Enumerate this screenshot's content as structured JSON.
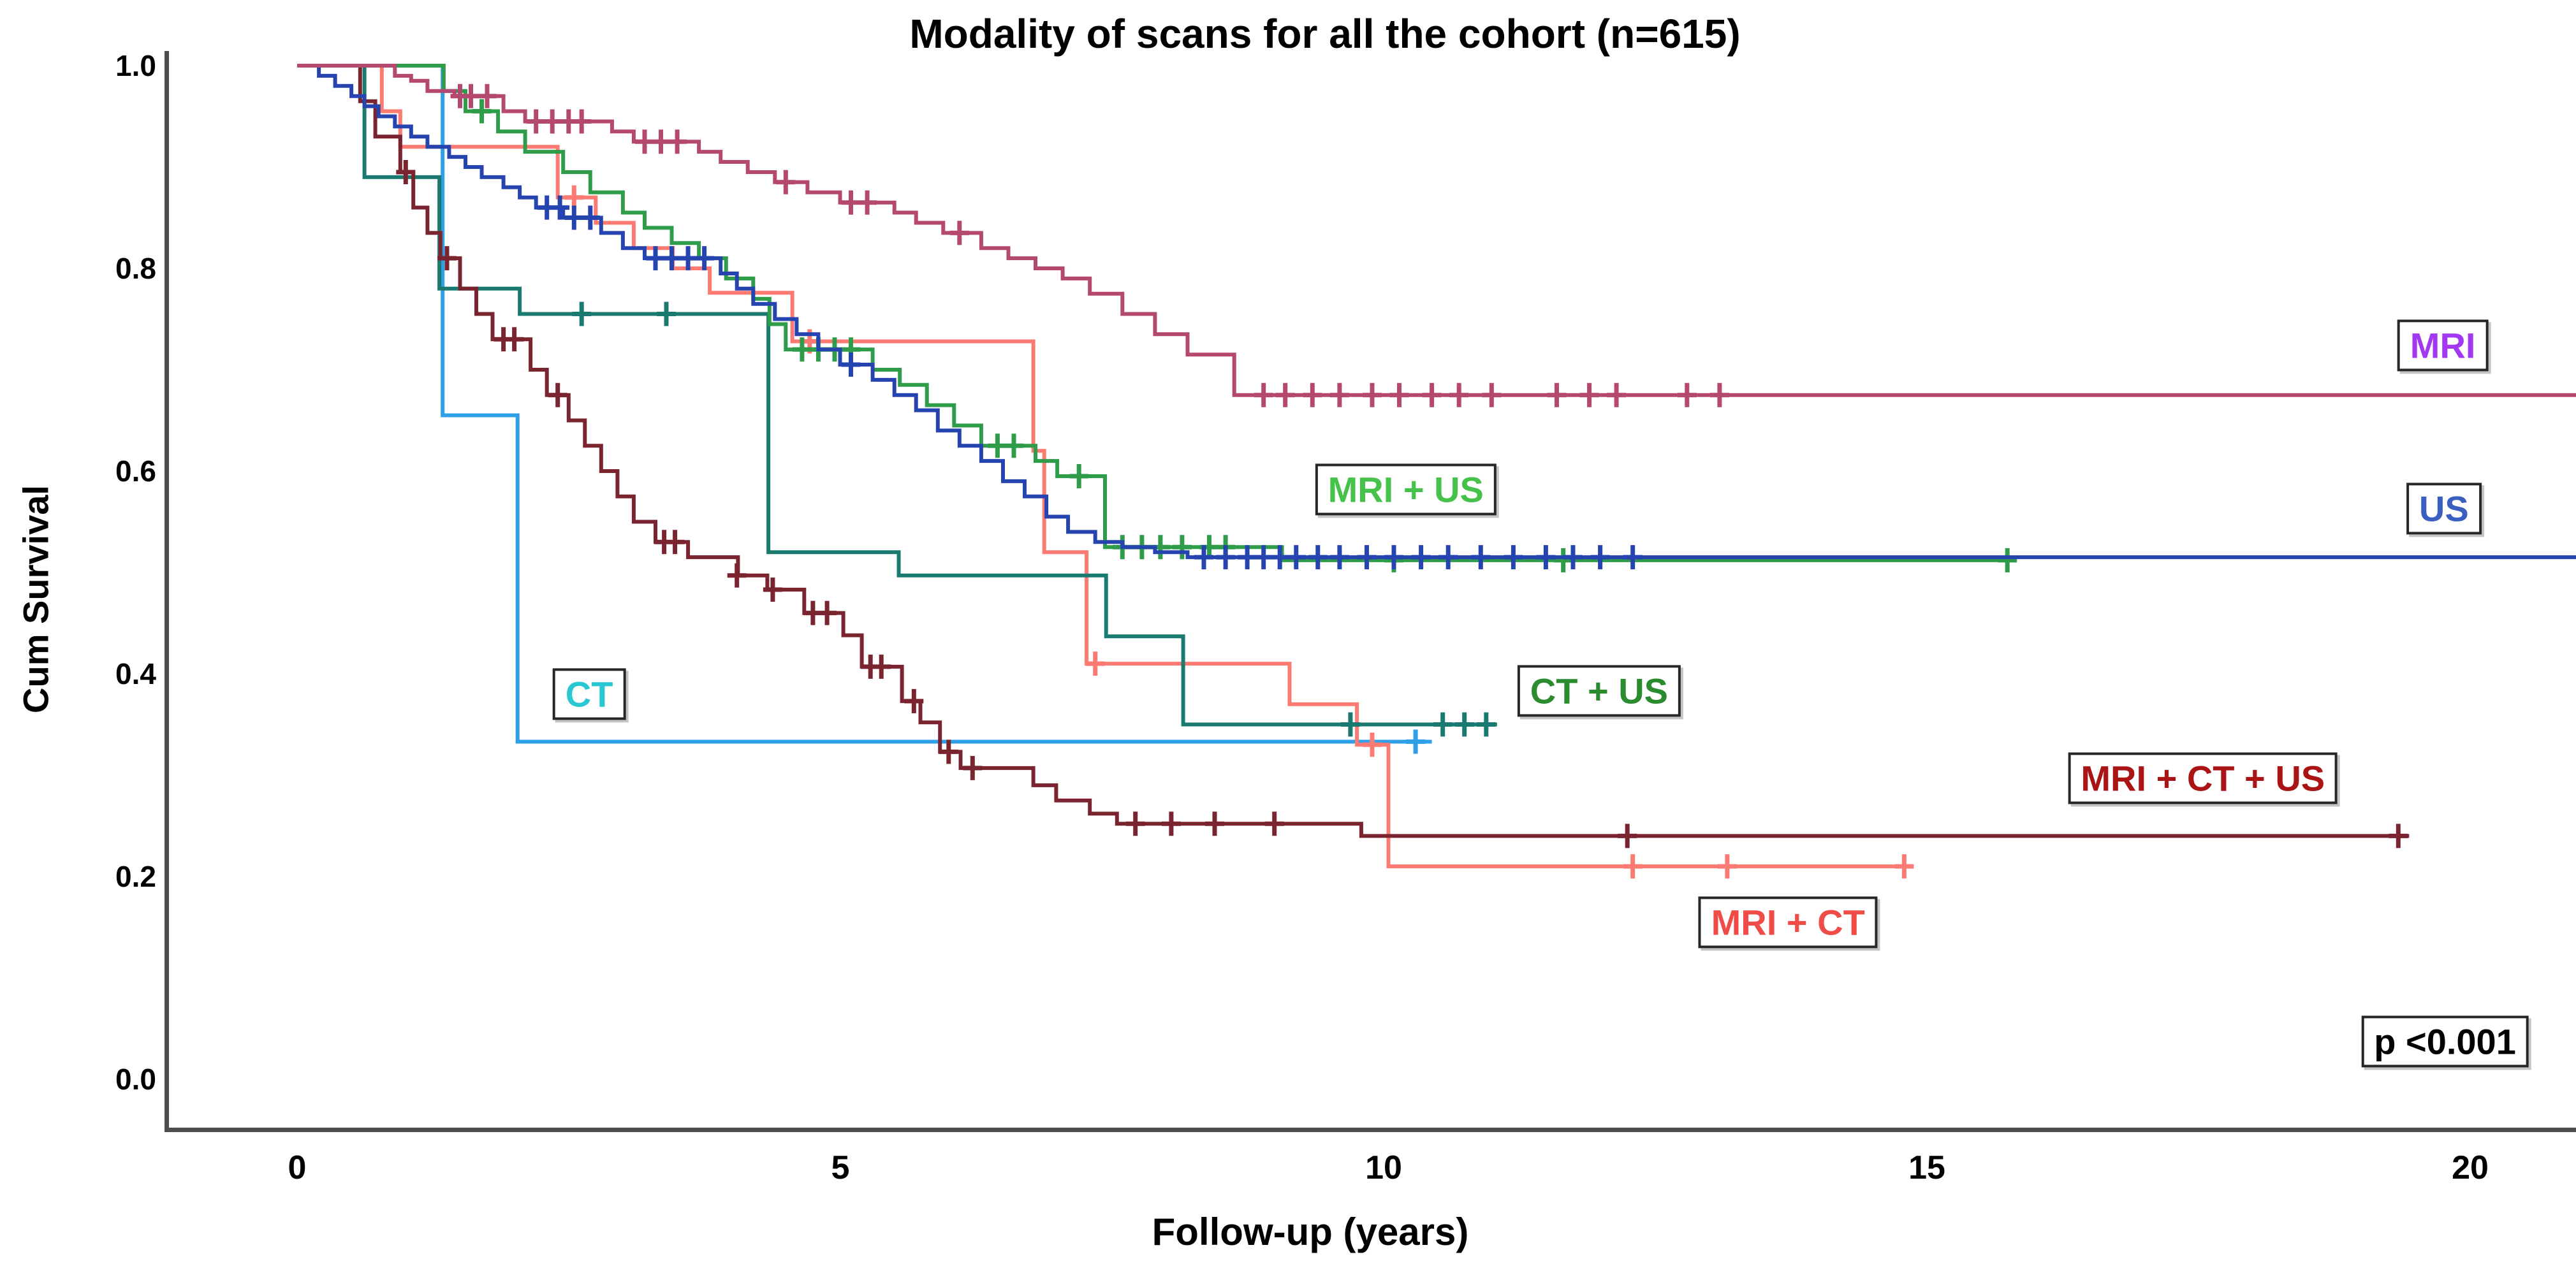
{
  "chart_data": {
    "type": "line",
    "subtype": "kaplan-meier-step",
    "title": "Modality of scans for all the cohort (n=615)",
    "xlabel": "Follow-up (years)",
    "ylabel": "Cum Survival",
    "xticks": [
      "0",
      "5",
      "10",
      "15",
      "20"
    ],
    "xtick_values": [
      0,
      5,
      10,
      15,
      20
    ],
    "yticks": [
      "1.0",
      "0.8",
      "0.6",
      "0.4",
      "0.2",
      "0.0"
    ],
    "ytick_values": [
      1.0,
      0.8,
      0.6,
      0.4,
      0.2,
      0.0
    ],
    "xlim": [
      0,
      21
    ],
    "ylim": [
      0,
      1.0
    ],
    "grid": false,
    "legend_position": "inline-boxed-labels",
    "axis_color": "#4d4d4d",
    "censor_marker": "plus",
    "series": [
      {
        "name": "CT",
        "color": "#2F9FE8",
        "points": [
          [
            0,
            1.0
          ],
          [
            1.34,
            0.655
          ],
          [
            2.03,
            0.333
          ],
          [
            10.45,
            0.333
          ]
        ],
        "censors": [
          [
            10.3,
            0.333
          ]
        ]
      },
      {
        "name": "MRI + CT",
        "color": "#FB7A72",
        "points": [
          [
            0,
            1.0
          ],
          [
            0.78,
            0.955
          ],
          [
            0.95,
            0.92
          ],
          [
            2.4,
            0.87
          ],
          [
            2.75,
            0.845
          ],
          [
            3.1,
            0.82
          ],
          [
            3.46,
            0.8
          ],
          [
            3.8,
            0.776
          ],
          [
            4.56,
            0.728
          ],
          [
            6.78,
            0.62
          ],
          [
            6.88,
            0.52
          ],
          [
            7.27,
            0.41
          ],
          [
            9.14,
            0.37
          ],
          [
            9.76,
            0.33
          ],
          [
            10.05,
            0.21
          ],
          [
            14.85,
            0.21
          ]
        ],
        "censors": [
          [
            2.55,
            0.87
          ],
          [
            4.72,
            0.728
          ],
          [
            7.35,
            0.41
          ],
          [
            9.9,
            0.33
          ],
          [
            12.3,
            0.21
          ],
          [
            13.17,
            0.21
          ],
          [
            14.8,
            0.21
          ]
        ]
      },
      {
        "name": "CT + US",
        "color": "#1B7A70",
        "points": [
          [
            0,
            1.0
          ],
          [
            0.62,
            0.89
          ],
          [
            1.31,
            0.78
          ],
          [
            2.05,
            0.755
          ],
          [
            4.34,
            0.52
          ],
          [
            5.54,
            0.497
          ],
          [
            7.45,
            0.437
          ],
          [
            8.16,
            0.35
          ],
          [
            11.05,
            0.35
          ]
        ],
        "censors": [
          [
            2.62,
            0.755
          ],
          [
            3.4,
            0.755
          ],
          [
            9.7,
            0.35
          ],
          [
            10.55,
            0.35
          ],
          [
            10.75,
            0.35
          ],
          [
            10.95,
            0.35
          ]
        ]
      },
      {
        "name": "MRI + CT + US",
        "color": "#7A2430",
        "points": [
          [
            0,
            1.0
          ],
          [
            0.58,
            0.965
          ],
          [
            0.72,
            0.93
          ],
          [
            0.95,
            0.895
          ],
          [
            1.07,
            0.86
          ],
          [
            1.2,
            0.835
          ],
          [
            1.32,
            0.81
          ],
          [
            1.5,
            0.78
          ],
          [
            1.65,
            0.755
          ],
          [
            1.8,
            0.73
          ],
          [
            2.15,
            0.7
          ],
          [
            2.3,
            0.675
          ],
          [
            2.5,
            0.65
          ],
          [
            2.65,
            0.625
          ],
          [
            2.8,
            0.6
          ],
          [
            2.95,
            0.575
          ],
          [
            3.1,
            0.55
          ],
          [
            3.3,
            0.53
          ],
          [
            3.6,
            0.515
          ],
          [
            4.06,
            0.497
          ],
          [
            4.33,
            0.483
          ],
          [
            4.67,
            0.46
          ],
          [
            5.03,
            0.438
          ],
          [
            5.2,
            0.407
          ],
          [
            5.57,
            0.373
          ],
          [
            5.74,
            0.352
          ],
          [
            5.92,
            0.323
          ],
          [
            6.11,
            0.307
          ],
          [
            6.78,
            0.29
          ],
          [
            6.99,
            0.275
          ],
          [
            7.3,
            0.262
          ],
          [
            7.55,
            0.252
          ],
          [
            9.8,
            0.24
          ],
          [
            19.45,
            0.24
          ]
        ],
        "censors": [
          [
            1.0,
            0.895
          ],
          [
            1.38,
            0.81
          ],
          [
            1.9,
            0.73
          ],
          [
            2.0,
            0.73
          ],
          [
            2.4,
            0.675
          ],
          [
            3.38,
            0.53
          ],
          [
            3.48,
            0.53
          ],
          [
            4.05,
            0.497
          ],
          [
            4.38,
            0.483
          ],
          [
            4.75,
            0.46
          ],
          [
            4.88,
            0.46
          ],
          [
            5.28,
            0.407
          ],
          [
            5.38,
            0.407
          ],
          [
            5.68,
            0.373
          ],
          [
            6.0,
            0.323
          ],
          [
            6.22,
            0.307
          ],
          [
            7.72,
            0.252
          ],
          [
            8.05,
            0.252
          ],
          [
            8.45,
            0.252
          ],
          [
            9.0,
            0.252
          ],
          [
            12.25,
            0.24
          ],
          [
            19.35,
            0.24
          ]
        ]
      },
      {
        "name": "MRI + US",
        "color": "#2E9C49",
        "points": [
          [
            0,
            1.0
          ],
          [
            1.35,
            0.975
          ],
          [
            1.55,
            0.955
          ],
          [
            1.85,
            0.935
          ],
          [
            2.1,
            0.915
          ],
          [
            2.45,
            0.895
          ],
          [
            2.7,
            0.875
          ],
          [
            3.0,
            0.855
          ],
          [
            3.2,
            0.84
          ],
          [
            3.45,
            0.825
          ],
          [
            3.7,
            0.81
          ],
          [
            3.95,
            0.79
          ],
          [
            4.2,
            0.77
          ],
          [
            4.35,
            0.745
          ],
          [
            4.5,
            0.72
          ],
          [
            5.3,
            0.7
          ],
          [
            5.55,
            0.685
          ],
          [
            5.8,
            0.665
          ],
          [
            6.05,
            0.645
          ],
          [
            6.3,
            0.625
          ],
          [
            6.8,
            0.61
          ],
          [
            7.0,
            0.595
          ],
          [
            7.44,
            0.525
          ],
          [
            9.07,
            0.512
          ],
          [
            15.8,
            0.512
          ]
        ],
        "censors": [
          [
            1.7,
            0.955
          ],
          [
            4.65,
            0.72
          ],
          [
            4.8,
            0.72
          ],
          [
            4.95,
            0.72
          ],
          [
            5.1,
            0.72
          ],
          [
            6.45,
            0.625
          ],
          [
            6.6,
            0.625
          ],
          [
            7.2,
            0.595
          ],
          [
            7.6,
            0.525
          ],
          [
            7.78,
            0.525
          ],
          [
            7.95,
            0.525
          ],
          [
            8.15,
            0.525
          ],
          [
            8.4,
            0.525
          ],
          [
            8.55,
            0.525
          ],
          [
            10.1,
            0.512
          ],
          [
            11.66,
            0.512
          ],
          [
            15.75,
            0.512
          ]
        ]
      },
      {
        "name": "US",
        "color": "#2644B0",
        "points": [
          [
            0,
            1.0
          ],
          [
            0.2,
            0.99
          ],
          [
            0.35,
            0.98
          ],
          [
            0.5,
            0.97
          ],
          [
            0.62,
            0.96
          ],
          [
            0.75,
            0.95
          ],
          [
            0.9,
            0.94
          ],
          [
            1.05,
            0.93
          ],
          [
            1.2,
            0.92
          ],
          [
            1.4,
            0.91
          ],
          [
            1.55,
            0.9
          ],
          [
            1.7,
            0.89
          ],
          [
            1.9,
            0.88
          ],
          [
            2.05,
            0.87
          ],
          [
            2.2,
            0.86
          ],
          [
            2.45,
            0.85
          ],
          [
            2.8,
            0.835
          ],
          [
            3.0,
            0.82
          ],
          [
            3.2,
            0.81
          ],
          [
            3.9,
            0.795
          ],
          [
            4.05,
            0.78
          ],
          [
            4.2,
            0.765
          ],
          [
            4.4,
            0.75
          ],
          [
            4.6,
            0.735
          ],
          [
            4.8,
            0.72
          ],
          [
            5.0,
            0.705
          ],
          [
            5.3,
            0.69
          ],
          [
            5.5,
            0.675
          ],
          [
            5.7,
            0.66
          ],
          [
            5.9,
            0.64
          ],
          [
            6.1,
            0.625
          ],
          [
            6.3,
            0.61
          ],
          [
            6.5,
            0.59
          ],
          [
            6.7,
            0.575
          ],
          [
            6.9,
            0.555
          ],
          [
            7.1,
            0.54
          ],
          [
            7.35,
            0.53
          ],
          [
            7.6,
            0.525
          ],
          [
            7.9,
            0.52
          ],
          [
            8.2,
            0.515
          ],
          [
            21.0,
            0.515
          ]
        ],
        "censors": [
          [
            2.3,
            0.86
          ],
          [
            2.42,
            0.86
          ],
          [
            2.55,
            0.85
          ],
          [
            2.7,
            0.85
          ],
          [
            3.3,
            0.81
          ],
          [
            3.45,
            0.81
          ],
          [
            3.6,
            0.81
          ],
          [
            3.75,
            0.81
          ],
          [
            5.1,
            0.705
          ],
          [
            8.35,
            0.515
          ],
          [
            8.55,
            0.515
          ],
          [
            8.75,
            0.515
          ],
          [
            8.9,
            0.515
          ],
          [
            9.05,
            0.515
          ],
          [
            9.2,
            0.515
          ],
          [
            9.4,
            0.515
          ],
          [
            9.6,
            0.515
          ],
          [
            9.85,
            0.515
          ],
          [
            10.1,
            0.515
          ],
          [
            10.35,
            0.515
          ],
          [
            10.6,
            0.515
          ],
          [
            10.9,
            0.515
          ],
          [
            11.2,
            0.515
          ],
          [
            11.5,
            0.515
          ],
          [
            11.75,
            0.515
          ],
          [
            12.0,
            0.515
          ],
          [
            12.3,
            0.515
          ]
        ]
      },
      {
        "name": "MRI",
        "color": "#B5486F",
        "points": [
          [
            0,
            1.0
          ],
          [
            0.9,
            0.99
          ],
          [
            1.05,
            0.985
          ],
          [
            1.2,
            0.975
          ],
          [
            1.45,
            0.97
          ],
          [
            1.9,
            0.955
          ],
          [
            2.1,
            0.945
          ],
          [
            2.9,
            0.935
          ],
          [
            3.1,
            0.925
          ],
          [
            3.7,
            0.915
          ],
          [
            3.9,
            0.905
          ],
          [
            4.15,
            0.895
          ],
          [
            4.4,
            0.885
          ],
          [
            4.7,
            0.875
          ],
          [
            5.0,
            0.865
          ],
          [
            5.5,
            0.855
          ],
          [
            5.7,
            0.845
          ],
          [
            5.95,
            0.835
          ],
          [
            6.3,
            0.82
          ],
          [
            6.55,
            0.81
          ],
          [
            6.8,
            0.8
          ],
          [
            7.05,
            0.79
          ],
          [
            7.3,
            0.775
          ],
          [
            7.6,
            0.755
          ],
          [
            7.9,
            0.735
          ],
          [
            8.2,
            0.715
          ],
          [
            8.63,
            0.675
          ],
          [
            21.0,
            0.675
          ]
        ],
        "censors": [
          [
            1.5,
            0.97
          ],
          [
            1.6,
            0.97
          ],
          [
            1.75,
            0.97
          ],
          [
            2.2,
            0.945
          ],
          [
            2.35,
            0.945
          ],
          [
            2.5,
            0.945
          ],
          [
            2.62,
            0.945
          ],
          [
            3.2,
            0.925
          ],
          [
            3.35,
            0.925
          ],
          [
            3.5,
            0.925
          ],
          [
            4.5,
            0.885
          ],
          [
            5.1,
            0.865
          ],
          [
            5.25,
            0.865
          ],
          [
            6.1,
            0.835
          ],
          [
            8.9,
            0.675
          ],
          [
            9.1,
            0.675
          ],
          [
            9.35,
            0.675
          ],
          [
            9.6,
            0.675
          ],
          [
            9.9,
            0.675
          ],
          [
            10.15,
            0.675
          ],
          [
            10.45,
            0.675
          ],
          [
            10.7,
            0.675
          ],
          [
            11.0,
            0.675
          ],
          [
            11.6,
            0.675
          ],
          [
            11.9,
            0.675
          ],
          [
            12.15,
            0.675
          ],
          [
            12.8,
            0.675
          ],
          [
            13.1,
            0.675
          ]
        ]
      }
    ],
    "annotations": [
      {
        "id": "mri-label",
        "text": "MRI",
        "color": "#A238F2",
        "x": 19.76,
        "y": 0.724
      },
      {
        "id": "us-label",
        "text": "US",
        "color": "#3B5FC0",
        "x": 19.77,
        "y": 0.563
      },
      {
        "id": "mri-us-label",
        "text": "MRI + US",
        "color": "#46C24A",
        "x": 10.21,
        "y": 0.582
      },
      {
        "id": "ct-label",
        "text": "CT",
        "color": "#29C7D1",
        "x": 2.69,
        "y": 0.38
      },
      {
        "id": "ct-us-label",
        "text": "CT + US",
        "color": "#2A8B2F",
        "x": 11.99,
        "y": 0.383
      },
      {
        "id": "mri-ct-us-label",
        "text": "MRI + CT + US",
        "color": "#AA1414",
        "x": 17.55,
        "y": 0.297
      },
      {
        "id": "mri-ct-label",
        "text": "MRI + CT",
        "color": "#EF4B47",
        "x": 13.73,
        "y": 0.155
      },
      {
        "id": "p-value",
        "text": "p <0.001",
        "color": "#000000",
        "x": 19.78,
        "y": 0.037
      }
    ]
  }
}
